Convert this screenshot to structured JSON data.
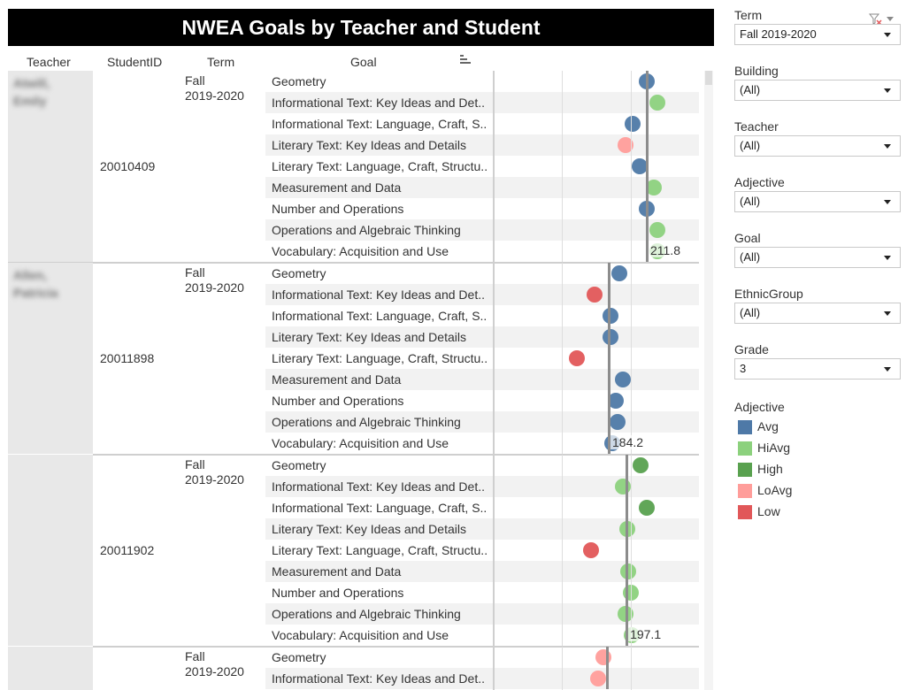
{
  "title": "NWEA Goals by Teacher and Student",
  "columns": {
    "teacher": "Teacher",
    "student_id": "StudentID",
    "term": "Term",
    "goal": "Goal",
    "sort_icon": "sort-descending-icon"
  },
  "colors": {
    "Avg": "#4e79a7",
    "HiAvg": "#8cd17d",
    "High": "#59a14f",
    "LoAvg": "#ff9d9a",
    "Low": "#e15759",
    "ref_line": "#8c8c8c",
    "title_bg": "#000000"
  },
  "axis": {
    "gridlines": [
      100,
      150,
      200,
      250
    ]
  },
  "students": [
    {
      "teacher": "Atwill, Emily",
      "teacher_blurred": true,
      "student_id": "20010409",
      "term_line1": "Fall",
      "term_line2": "2019-2020",
      "ref_value": "211.8",
      "goals": [
        {
          "goal": "Geometry",
          "adjective": "Avg",
          "value": 211.8
        },
        {
          "goal": "Informational Text: Key Ideas and Det..",
          "adjective": "HiAvg",
          "value": 219.5
        },
        {
          "goal": "Informational Text: Language, Craft, S..",
          "adjective": "Avg",
          "value": 201.6
        },
        {
          "goal": "Literary Text: Key Ideas and Details",
          "adjective": "LoAvg",
          "value": 196.5
        },
        {
          "goal": "Literary Text: Language, Craft, Structu..",
          "adjective": "Avg",
          "value": 206.7
        },
        {
          "goal": "Measurement and Data",
          "adjective": "HiAvg",
          "value": 217.0
        },
        {
          "goal": "Number and Operations",
          "adjective": "Avg",
          "value": 211.8
        },
        {
          "goal": "Operations and Algebraic Thinking",
          "adjective": "HiAvg",
          "value": 219.5
        },
        {
          "goal": "Vocabulary: Acquisition and Use",
          "adjective": "HiAvg",
          "value": 219.5
        }
      ]
    },
    {
      "teacher": "Allen, Patricia",
      "teacher_blurred": true,
      "student_id": "20011898",
      "term_line1": "Fall",
      "term_line2": "2019-2020",
      "ref_value": "184.2",
      "goals": [
        {
          "goal": "Geometry",
          "adjective": "Avg",
          "value": 191.9
        },
        {
          "goal": "Informational Text: Key Ideas and Det..",
          "adjective": "Low",
          "value": 173.9
        },
        {
          "goal": "Informational Text: Language, Craft, S..",
          "adjective": "Avg",
          "value": 185.5
        },
        {
          "goal": "Literary Text: Key Ideas and Details",
          "adjective": "Avg",
          "value": 185.5
        },
        {
          "goal": "Literary Text: Language, Craft, Structu..",
          "adjective": "Low",
          "value": 161.1
        },
        {
          "goal": "Measurement and Data",
          "adjective": "Avg",
          "value": 194.5
        },
        {
          "goal": "Number and Operations",
          "adjective": "Avg",
          "value": 189.3
        },
        {
          "goal": "Operations and Algebraic Thinking",
          "adjective": "Avg",
          "value": 190.6
        },
        {
          "goal": "Vocabulary: Acquisition and Use",
          "adjective": "Avg",
          "value": 187.0
        }
      ]
    },
    {
      "teacher": "",
      "teacher_blurred": true,
      "student_id": "20011902",
      "term_line1": "Fall",
      "term_line2": "2019-2020",
      "ref_value": "197.1",
      "goals": [
        {
          "goal": "Geometry",
          "adjective": "High",
          "value": 207.4
        },
        {
          "goal": "Informational Text: Key Ideas and Det..",
          "adjective": "HiAvg",
          "value": 194.5
        },
        {
          "goal": "Informational Text: Language, Craft, S..",
          "adjective": "High",
          "value": 212.0
        },
        {
          "goal": "Literary Text: Key Ideas and Details",
          "adjective": "HiAvg",
          "value": 197.7
        },
        {
          "goal": "Literary Text: Language, Craft, Structu..",
          "adjective": "Low",
          "value": 171.4
        },
        {
          "goal": "Measurement and Data",
          "adjective": "HiAvg",
          "value": 198.4
        },
        {
          "goal": "Number and Operations",
          "adjective": "HiAvg",
          "value": 200.3
        },
        {
          "goal": "Operations and Algebraic Thinking",
          "adjective": "HiAvg",
          "value": 196.5
        },
        {
          "goal": "Vocabulary: Acquisition and Use",
          "adjective": "HiAvg",
          "value": 200.9
        }
      ]
    },
    {
      "teacher": "",
      "teacher_blurred": true,
      "student_id": "",
      "term_line1": "Fall",
      "term_line2": "2019-2020",
      "ref_value": "",
      "ref_line_value": 182.9,
      "goals": [
        {
          "goal": "Geometry",
          "adjective": "LoAvg",
          "value": 180.4
        },
        {
          "goal": "Informational Text: Key Ideas and Det..",
          "adjective": "LoAvg",
          "value": 176.5
        }
      ]
    }
  ],
  "filters": [
    {
      "label": "Term",
      "value": "Fall 2019-2020",
      "has_tools": true
    },
    {
      "label": "Building",
      "value": "(All)"
    },
    {
      "label": "Teacher",
      "value": "(All)"
    },
    {
      "label": "Adjective",
      "value": "(All)"
    },
    {
      "label": "Goal",
      "value": "(All)"
    },
    {
      "label": "EthnicGroup",
      "value": "(All)"
    },
    {
      "label": "Grade",
      "value": "3"
    }
  ],
  "legend": {
    "title": "Adjective",
    "items": [
      {
        "label": "Avg",
        "color": "#4e79a7"
      },
      {
        "label": "HiAvg",
        "color": "#8cd17d"
      },
      {
        "label": "High",
        "color": "#59a14f"
      },
      {
        "label": "LoAvg",
        "color": "#ff9d9a"
      },
      {
        "label": "Low",
        "color": "#e15759"
      }
    ]
  }
}
